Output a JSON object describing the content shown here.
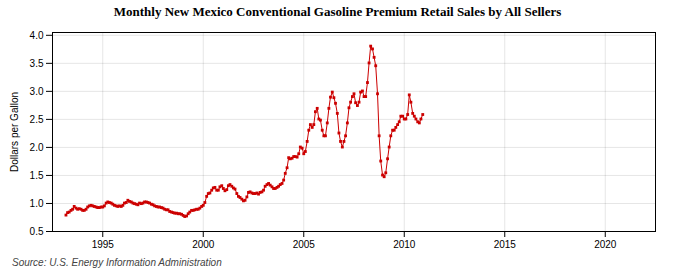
{
  "chart_data": {
    "type": "line",
    "title": "Monthly New Mexico Conventional Gasoline Premium Retail Sales by All Sellers",
    "ylabel": "Dollars per Gallon",
    "source": "Source: U.S. Energy Information Administration",
    "color": "#cc0000",
    "marker": "square",
    "grid": true,
    "xlim": [
      1992.5,
      2022.5
    ],
    "ylim": [
      0.5,
      4.05
    ],
    "xticks": [
      1995,
      2000,
      2005,
      2010,
      2015,
      2020
    ],
    "yticks": [
      0.5,
      {
        "value": 1.0,
        "label": "1.0"
      },
      1.5,
      {
        "value": 2.0,
        "label": "2.0"
      },
      2.5,
      {
        "value": 3.0,
        "label": "3.0"
      },
      3.5,
      {
        "value": 4.0,
        "label": "4.0"
      }
    ],
    "x": [
      1993.17,
      1993.25,
      1993.33,
      1993.42,
      1993.5,
      1993.58,
      1993.67,
      1993.75,
      1993.83,
      1993.92,
      1994.0,
      1994.08,
      1994.17,
      1994.25,
      1994.33,
      1994.42,
      1994.5,
      1994.58,
      1994.67,
      1994.75,
      1994.83,
      1994.92,
      1995.0,
      1995.08,
      1995.17,
      1995.25,
      1995.33,
      1995.42,
      1995.5,
      1995.58,
      1995.67,
      1995.75,
      1995.83,
      1995.92,
      1996.0,
      1996.08,
      1996.17,
      1996.25,
      1996.33,
      1996.42,
      1996.5,
      1996.58,
      1996.67,
      1996.75,
      1996.83,
      1996.92,
      1997.0,
      1997.08,
      1997.17,
      1997.25,
      1997.33,
      1997.42,
      1997.5,
      1997.58,
      1997.67,
      1997.75,
      1997.83,
      1997.92,
      1998.0,
      1998.08,
      1998.17,
      1998.25,
      1998.33,
      1998.42,
      1998.5,
      1998.58,
      1998.67,
      1998.75,
      1998.83,
      1998.92,
      1999.0,
      1999.08,
      1999.17,
      1999.25,
      1999.33,
      1999.42,
      1999.5,
      1999.58,
      1999.67,
      1999.75,
      1999.83,
      1999.92,
      2000.0,
      2000.08,
      2000.17,
      2000.25,
      2000.33,
      2000.42,
      2000.5,
      2000.58,
      2000.67,
      2000.75,
      2000.83,
      2000.92,
      2001.0,
      2001.08,
      2001.17,
      2001.25,
      2001.33,
      2001.42,
      2001.5,
      2001.58,
      2001.67,
      2001.75,
      2001.83,
      2001.92,
      2002.0,
      2002.08,
      2002.17,
      2002.25,
      2002.33,
      2002.42,
      2002.5,
      2002.58,
      2002.67,
      2002.75,
      2002.83,
      2002.92,
      2003.0,
      2003.08,
      2003.17,
      2003.25,
      2003.33,
      2003.42,
      2003.5,
      2003.58,
      2003.67,
      2003.75,
      2003.83,
      2003.92,
      2004.0,
      2004.08,
      2004.17,
      2004.25,
      2004.33,
      2004.42,
      2004.5,
      2004.58,
      2004.67,
      2004.75,
      2004.83,
      2004.92,
      2005.0,
      2005.08,
      2005.17,
      2005.25,
      2005.33,
      2005.42,
      2005.5,
      2005.58,
      2005.67,
      2005.75,
      2005.83,
      2005.92,
      2006.0,
      2006.08,
      2006.17,
      2006.25,
      2006.33,
      2006.42,
      2006.5,
      2006.58,
      2006.67,
      2006.75,
      2006.83,
      2006.92,
      2007.0,
      2007.08,
      2007.17,
      2007.25,
      2007.33,
      2007.42,
      2007.5,
      2007.58,
      2007.67,
      2007.75,
      2007.83,
      2007.92,
      2008.0,
      2008.08,
      2008.17,
      2008.25,
      2008.33,
      2008.42,
      2008.5,
      2008.58,
      2008.67,
      2008.75,
      2008.83,
      2008.92,
      2009.0,
      2009.08,
      2009.17,
      2009.25,
      2009.33,
      2009.42,
      2009.5,
      2009.58,
      2009.67,
      2009.75,
      2009.83,
      2009.92,
      2010.0,
      2010.08,
      2010.17,
      2010.25,
      2010.33,
      2010.42,
      2010.5,
      2010.58,
      2010.67,
      2010.75,
      2010.83,
      2010.92
    ],
    "values": [
      0.793,
      0.837,
      0.847,
      0.877,
      0.897,
      0.947,
      0.917,
      0.897,
      0.907,
      0.897,
      0.877,
      0.877,
      0.897,
      0.937,
      0.957,
      0.967,
      0.957,
      0.947,
      0.937,
      0.927,
      0.927,
      0.937,
      0.937,
      0.957,
      1.007,
      1.027,
      1.017,
      1.007,
      0.987,
      0.967,
      0.957,
      0.947,
      0.957,
      0.947,
      0.967,
      1.007,
      1.017,
      1.057,
      1.037,
      1.027,
      1.007,
      0.997,
      0.987,
      0.977,
      1.007,
      0.997,
      1.007,
      1.027,
      1.027,
      1.017,
      1.007,
      0.987,
      0.977,
      0.957,
      0.947,
      0.937,
      0.937,
      0.927,
      0.917,
      0.897,
      0.887,
      0.887,
      0.857,
      0.847,
      0.837,
      0.827,
      0.827,
      0.817,
      0.817,
      0.807,
      0.787,
      0.767,
      0.777,
      0.817,
      0.847,
      0.877,
      0.877,
      0.887,
      0.897,
      0.897,
      0.917,
      0.947,
      0.967,
      1.017,
      1.127,
      1.177,
      1.187,
      1.237,
      1.277,
      1.287,
      1.237,
      1.237,
      1.297,
      1.317,
      1.267,
      1.227,
      1.247,
      1.317,
      1.337,
      1.307,
      1.277,
      1.257,
      1.177,
      1.127,
      1.107,
      1.077,
      1.047,
      1.057,
      1.117,
      1.197,
      1.207,
      1.187,
      1.177,
      1.177,
      1.187,
      1.167,
      1.197,
      1.207,
      1.237,
      1.307,
      1.337,
      1.357,
      1.327,
      1.297,
      1.267,
      1.267,
      1.287,
      1.307,
      1.337,
      1.357,
      1.417,
      1.537,
      1.637,
      1.817,
      1.797,
      1.807,
      1.837,
      1.837,
      1.827,
      1.887,
      2.007,
      1.987,
      1.887,
      1.927,
      2.107,
      2.307,
      2.407,
      2.357,
      2.407,
      2.637,
      2.697,
      2.507,
      2.487,
      2.307,
      2.207,
      2.207,
      2.437,
      2.697,
      2.897,
      2.987,
      2.887,
      2.787,
      2.607,
      2.257,
      2.107,
      2.007,
      2.107,
      2.207,
      2.437,
      2.707,
      2.807,
      2.907,
      2.957,
      2.797,
      2.747,
      2.807,
      2.987,
      3.007,
      2.907,
      2.907,
      3.157,
      3.507,
      3.807,
      3.757,
      3.607,
      3.457,
      2.957,
      2.207,
      1.757,
      1.507,
      1.477,
      1.547,
      1.797,
      2.007,
      2.207,
      2.307,
      2.307,
      2.357,
      2.407,
      2.457,
      2.557,
      2.557,
      2.507,
      2.507,
      2.587,
      2.937,
      2.807,
      2.607,
      2.557,
      2.507,
      2.457,
      2.437,
      2.507,
      2.587
    ]
  }
}
